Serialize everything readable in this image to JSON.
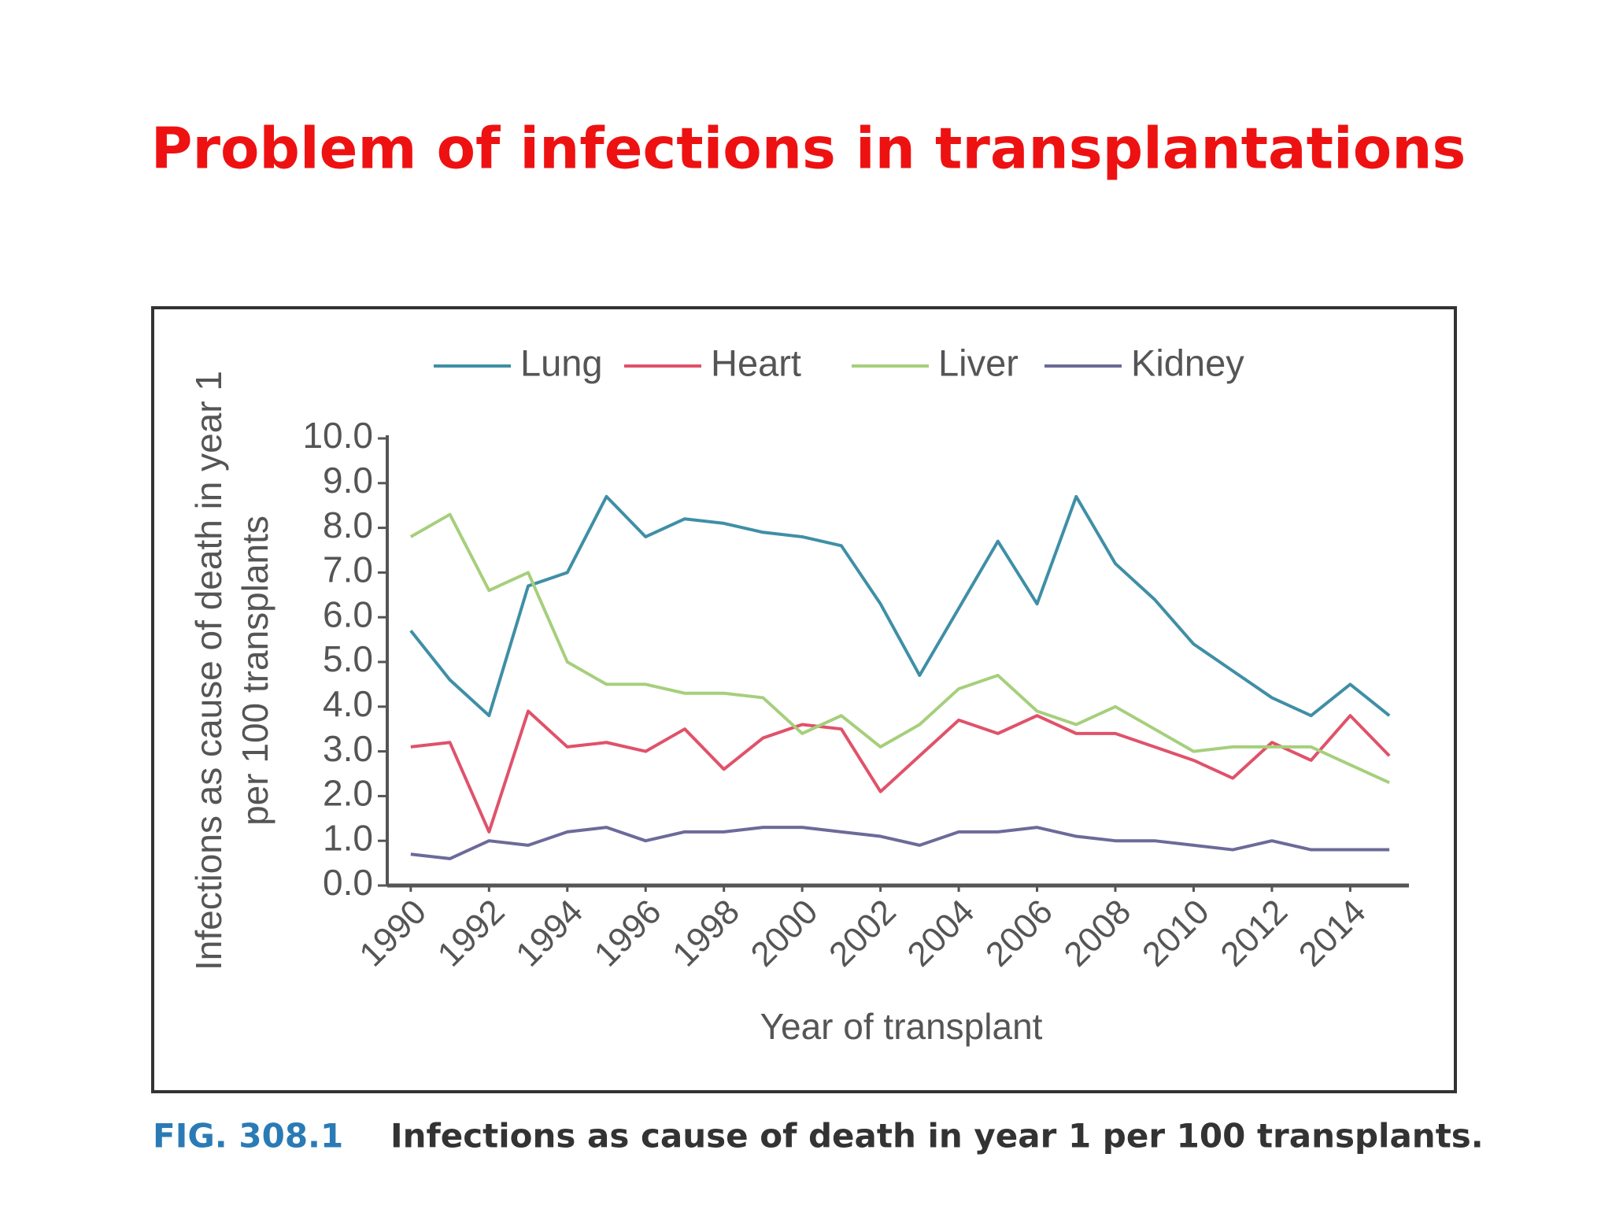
{
  "slide_title": "Problem of infections in transplantations",
  "figure_label": "FIG. 308.1",
  "caption": "Infections as cause of death in year 1 per 100 transplants.",
  "chart_data": {
    "type": "line",
    "ylabel": [
      "Infections as cause of death in year 1",
      "per 100 transplants"
    ],
    "xlabel": "Year of transplant",
    "x": [
      1990,
      1991,
      1992,
      1993,
      1994,
      1995,
      1996,
      1997,
      1998,
      1999,
      2000,
      2001,
      2002,
      2003,
      2004,
      2005,
      2006,
      2007,
      2008,
      2009,
      2010,
      2011,
      2012,
      2013,
      2014,
      2015
    ],
    "series": [
      {
        "name": "Lung",
        "color": "#3f8fa6",
        "values": [
          5.7,
          4.6,
          3.8,
          6.7,
          7.0,
          8.7,
          7.8,
          8.2,
          8.1,
          7.9,
          7.8,
          7.6,
          6.3,
          4.7,
          6.2,
          7.7,
          6.3,
          8.7,
          7.2,
          6.4,
          5.4,
          4.8,
          4.2,
          3.8,
          4.5,
          3.8
        ]
      },
      {
        "name": "Heart",
        "color": "#e0526a",
        "values": [
          3.1,
          3.2,
          1.2,
          3.9,
          3.1,
          3.2,
          3.0,
          3.5,
          2.6,
          3.3,
          3.6,
          3.5,
          2.1,
          2.9,
          3.7,
          3.4,
          3.8,
          3.4,
          3.4,
          3.1,
          2.8,
          2.4,
          3.2,
          2.8,
          3.8,
          2.9
        ]
      },
      {
        "name": "Liver",
        "color": "#a6cf7c",
        "values": [
          7.8,
          8.3,
          6.6,
          7.0,
          5.0,
          4.5,
          4.5,
          4.3,
          4.3,
          4.2,
          3.4,
          3.8,
          3.1,
          3.6,
          4.4,
          4.7,
          3.9,
          3.6,
          4.0,
          3.5,
          3.0,
          3.1,
          3.1,
          3.1,
          2.7,
          2.3
        ]
      },
      {
        "name": "Kidney",
        "color": "#6c6a99",
        "values": [
          0.7,
          0.6,
          1.0,
          0.9,
          1.2,
          1.3,
          1.0,
          1.2,
          1.2,
          1.3,
          1.3,
          1.2,
          1.1,
          0.9,
          1.2,
          1.2,
          1.3,
          1.1,
          1.0,
          1.0,
          0.9,
          0.8,
          1.0,
          0.8,
          0.8,
          0.8
        ]
      }
    ],
    "xlim": [
      1989.4,
      2015.5
    ],
    "xticks": [
      1990,
      1992,
      1994,
      1996,
      1998,
      2000,
      2002,
      2004,
      2006,
      2008,
      2010,
      2012,
      2014
    ],
    "ylim": [
      0,
      10
    ],
    "yticks": [
      {
        "value": 0,
        "label": "0.0"
      },
      {
        "value": 1,
        "label": "1.0"
      },
      {
        "value": 2,
        "label": "2.0"
      },
      {
        "value": 3,
        "label": "3.0"
      },
      {
        "value": 4,
        "label": "4.0"
      },
      {
        "value": 5,
        "label": "5.0"
      },
      {
        "value": 6,
        "label": "6.0"
      },
      {
        "value": 7,
        "label": "7.0"
      },
      {
        "value": 8,
        "label": "8.0"
      },
      {
        "value": 9,
        "label": "9.0"
      },
      {
        "value": 10,
        "label": "10.0"
      }
    ],
    "grid": false,
    "legend": "top"
  }
}
